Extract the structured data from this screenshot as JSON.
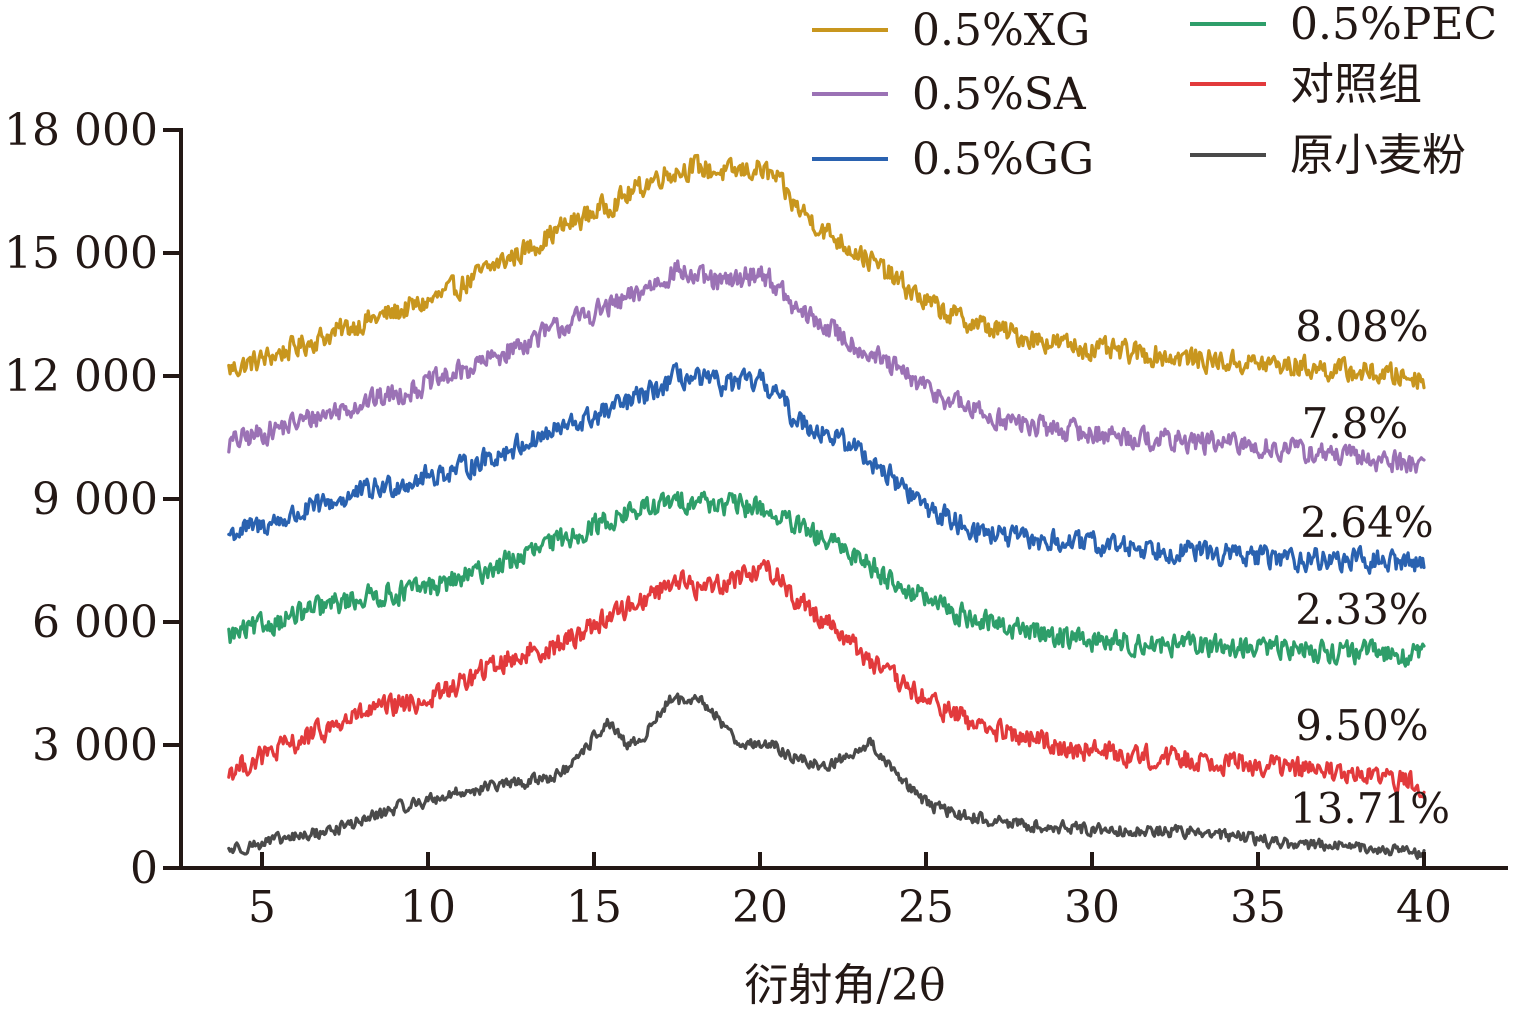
{
  "chart_data": {
    "type": "line",
    "title": "",
    "xlabel": "衍射角/2θ",
    "ylabel": "",
    "xlim": [
      3.5,
      43.5
    ],
    "ylim": [
      0,
      18000
    ],
    "grid": false,
    "legend_position": "top-right",
    "x_ticks": [
      5,
      10,
      15,
      20,
      25,
      30,
      35,
      40
    ],
    "x_tick_labels": [
      "5",
      "10",
      "15",
      "20",
      "25",
      "30",
      "35",
      "40"
    ],
    "y_ticks": [
      0,
      3000,
      6000,
      9000,
      12000,
      15000,
      18000
    ],
    "y_tick_labels": [
      "0",
      "3 000",
      "6 000",
      "9 000",
      "12 000",
      "15 000",
      "18 000"
    ],
    "series": [
      {
        "name": "0.5%XG",
        "color": "#C8961E",
        "annotation": "8.08%",
        "points": [
          [
            4,
            12150
          ],
          [
            5,
            12400
          ],
          [
            6,
            12700
          ],
          [
            7,
            13000
          ],
          [
            8,
            13300
          ],
          [
            9,
            13550
          ],
          [
            10,
            13800
          ],
          [
            11,
            14200
          ],
          [
            12,
            14700
          ],
          [
            13,
            15100
          ],
          [
            14,
            15600
          ],
          [
            15,
            16000
          ],
          [
            16,
            16400
          ],
          [
            17,
            16900
          ],
          [
            18,
            17100
          ],
          [
            19,
            16950
          ],
          [
            20,
            17050
          ],
          [
            20.5,
            16800
          ],
          [
            21,
            16200
          ],
          [
            22,
            15500
          ],
          [
            23,
            15000
          ],
          [
            24,
            14400
          ],
          [
            25,
            13800
          ],
          [
            26,
            13400
          ],
          [
            27,
            13150
          ],
          [
            28,
            12950
          ],
          [
            29,
            12800
          ],
          [
            30,
            12650
          ],
          [
            32,
            12500
          ],
          [
            34,
            12350
          ],
          [
            36,
            12250
          ],
          [
            38,
            12100
          ],
          [
            40,
            11950
          ]
        ]
      },
      {
        "name": "0.5%SA",
        "color": "#9B72B5",
        "annotation": "7.8%",
        "points": [
          [
            4,
            10350
          ],
          [
            5,
            10600
          ],
          [
            6,
            10850
          ],
          [
            7,
            11100
          ],
          [
            8,
            11350
          ],
          [
            9,
            11550
          ],
          [
            10,
            11800
          ],
          [
            11,
            12100
          ],
          [
            12,
            12450
          ],
          [
            13,
            12850
          ],
          [
            14,
            13200
          ],
          [
            15,
            13550
          ],
          [
            16,
            13850
          ],
          [
            17,
            14350
          ],
          [
            17.5,
            14600
          ],
          [
            18,
            14400
          ],
          [
            19,
            14250
          ],
          [
            20,
            14550
          ],
          [
            20.5,
            14200
          ],
          [
            21,
            13650
          ],
          [
            22,
            13200
          ],
          [
            23,
            12700
          ],
          [
            24,
            12200
          ],
          [
            25,
            11700
          ],
          [
            26,
            11300
          ],
          [
            27,
            11000
          ],
          [
            28,
            10800
          ],
          [
            30,
            10600
          ],
          [
            32,
            10450
          ],
          [
            34,
            10350
          ],
          [
            36,
            10200
          ],
          [
            38,
            10000
          ],
          [
            40,
            9850
          ]
        ]
      },
      {
        "name": "0.5%GG",
        "color": "#2A62B0",
        "annotation": "2.64%",
        "points": [
          [
            4,
            8150
          ],
          [
            5,
            8350
          ],
          [
            6,
            8600
          ],
          [
            7,
            8900
          ],
          [
            8,
            9150
          ],
          [
            9,
            9350
          ],
          [
            10,
            9550
          ],
          [
            11,
            9750
          ],
          [
            12,
            10050
          ],
          [
            13,
            10400
          ],
          [
            14,
            10700
          ],
          [
            15,
            11000
          ],
          [
            16,
            11350
          ],
          [
            17,
            11700
          ],
          [
            17.5,
            12000
          ],
          [
            18,
            11900
          ],
          [
            19,
            11800
          ],
          [
            20,
            11850
          ],
          [
            20.5,
            11600
          ],
          [
            21,
            11000
          ],
          [
            22,
            10600
          ],
          [
            23,
            10200
          ],
          [
            24,
            9500
          ],
          [
            25,
            8800
          ],
          [
            26,
            8400
          ],
          [
            27,
            8150
          ],
          [
            28,
            8000
          ],
          [
            30,
            7900
          ],
          [
            32,
            7800
          ],
          [
            34,
            7650
          ],
          [
            36,
            7550
          ],
          [
            38,
            7500
          ],
          [
            40,
            7450
          ]
        ]
      },
      {
        "name": "0.5%PEC",
        "color": "#2E9E6A",
        "annotation": "2.33%",
        "points": [
          [
            4,
            5650
          ],
          [
            5,
            5900
          ],
          [
            6,
            6150
          ],
          [
            7,
            6400
          ],
          [
            8,
            6600
          ],
          [
            9,
            6700
          ],
          [
            10,
            6850
          ],
          [
            11,
            7050
          ],
          [
            12,
            7350
          ],
          [
            13,
            7650
          ],
          [
            14,
            8000
          ],
          [
            15,
            8350
          ],
          [
            16,
            8650
          ],
          [
            17,
            8850
          ],
          [
            18,
            9000
          ],
          [
            19,
            8850
          ],
          [
            20,
            8800
          ],
          [
            21,
            8350
          ],
          [
            22,
            7950
          ],
          [
            23,
            7600
          ],
          [
            24,
            7000
          ],
          [
            25,
            6550
          ],
          [
            26,
            6200
          ],
          [
            27,
            5950
          ],
          [
            28,
            5800
          ],
          [
            30,
            5550
          ],
          [
            32,
            5450
          ],
          [
            34,
            5400
          ],
          [
            36,
            5350
          ],
          [
            38,
            5250
          ],
          [
            40,
            5200
          ]
        ]
      },
      {
        "name": "对照组",
        "color": "#E23A3C",
        "annotation": "9.50%",
        "points": [
          [
            4,
            2350
          ],
          [
            5,
            2700
          ],
          [
            6,
            3050
          ],
          [
            7,
            3400
          ],
          [
            8,
            3750
          ],
          [
            9,
            3950
          ],
          [
            10,
            4100
          ],
          [
            11,
            4500
          ],
          [
            12,
            4950
          ],
          [
            13,
            5250
          ],
          [
            14,
            5450
          ],
          [
            15,
            5950
          ],
          [
            16,
            6350
          ],
          [
            17,
            6800
          ],
          [
            17.5,
            7100
          ],
          [
            18,
            6800
          ],
          [
            19,
            7000
          ],
          [
            20,
            7300
          ],
          [
            20.5,
            7200
          ],
          [
            21,
            6600
          ],
          [
            22,
            6050
          ],
          [
            23,
            5300
          ],
          [
            24,
            4600
          ],
          [
            25,
            4100
          ],
          [
            26,
            3700
          ],
          [
            27,
            3350
          ],
          [
            28,
            3150
          ],
          [
            30,
            2850
          ],
          [
            32,
            2700
          ],
          [
            34,
            2600
          ],
          [
            36,
            2450
          ],
          [
            38,
            2250
          ],
          [
            40,
            2050
          ]
        ]
      },
      {
        "name": "原小麦粉",
        "color": "#4A4A4A",
        "annotation": "13.71%",
        "points": [
          [
            4,
            450
          ],
          [
            5,
            600
          ],
          [
            6,
            750
          ],
          [
            7,
            900
          ],
          [
            8,
            1150
          ],
          [
            9,
            1450
          ],
          [
            10,
            1650
          ],
          [
            11,
            1850
          ],
          [
            12,
            2000
          ],
          [
            13,
            2100
          ],
          [
            14,
            2300
          ],
          [
            14.5,
            2600
          ],
          [
            15,
            3200
          ],
          [
            15.4,
            3550
          ],
          [
            16,
            2950
          ],
          [
            16.5,
            3200
          ],
          [
            17,
            3800
          ],
          [
            17.4,
            4200
          ],
          [
            17.8,
            3950
          ],
          [
            18.2,
            4100
          ],
          [
            18.7,
            3700
          ],
          [
            19.3,
            3100
          ],
          [
            20,
            3000
          ],
          [
            20.5,
            2950
          ],
          [
            21,
            2700
          ],
          [
            21.5,
            2550
          ],
          [
            22,
            2500
          ],
          [
            22.5,
            2650
          ],
          [
            23,
            2950
          ],
          [
            23.3,
            3050
          ],
          [
            23.8,
            2600
          ],
          [
            24.5,
            2000
          ],
          [
            25,
            1550
          ],
          [
            26,
            1300
          ],
          [
            27,
            1150
          ],
          [
            28,
            1050
          ],
          [
            30,
            950
          ],
          [
            32,
            900
          ],
          [
            33,
            880
          ],
          [
            34,
            800
          ],
          [
            35,
            700
          ],
          [
            36,
            600
          ],
          [
            38,
            500
          ],
          [
            40,
            350
          ]
        ]
      }
    ]
  }
}
